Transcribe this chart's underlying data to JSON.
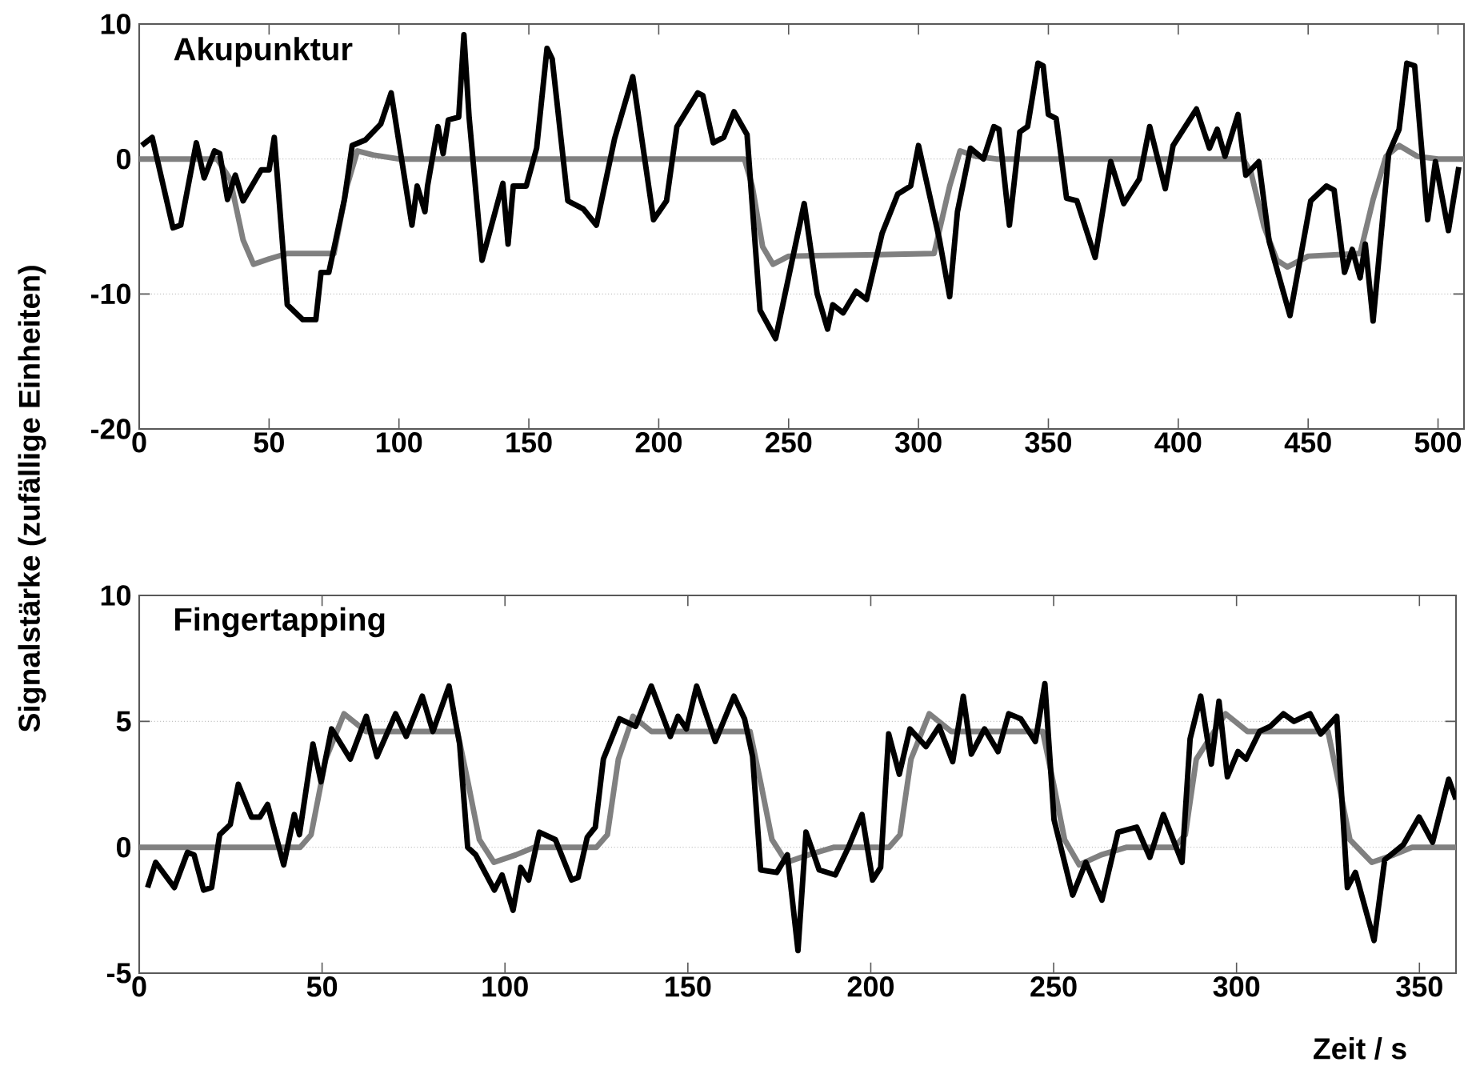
{
  "chart_data": [
    {
      "type": "line",
      "title": "Akupunktur",
      "ylabel": "Signalstärke (zufällige Einheiten)",
      "xlim": [
        0,
        510
      ],
      "ylim": [
        -20,
        10
      ],
      "xticks": [
        0,
        50,
        100,
        150,
        200,
        250,
        300,
        350,
        400,
        450,
        500
      ],
      "yticks": [
        -20,
        -10,
        0,
        10
      ],
      "grid": "y",
      "series": [
        {
          "color": "#808080",
          "x": [
            0,
            30,
            35,
            40,
            44,
            50,
            57,
            75,
            80,
            84,
            90,
            100,
            233,
            236,
            240,
            244,
            250,
            280,
            306,
            312,
            316,
            322,
            330,
            425,
            428,
            433,
            438,
            442,
            450,
            470,
            475,
            480,
            485,
            492,
            500,
            510
          ],
          "values": [
            0,
            0,
            -1.5,
            -6,
            -7.8,
            -7.4,
            -7,
            -7,
            -2,
            0.6,
            0.3,
            0,
            0,
            -2,
            -6.5,
            -7.8,
            -7.2,
            -7.1,
            -7,
            -2,
            0.6,
            0.2,
            0,
            0,
            -1,
            -5,
            -7.5,
            -8,
            -7.2,
            -7,
            -3,
            0.2,
            1,
            0.2,
            0,
            0
          ]
        },
        {
          "color": "#000000",
          "x": [
            1,
            5,
            13,
            16,
            22,
            25,
            29,
            31,
            34,
            37,
            40,
            47,
            50,
            52,
            57,
            63,
            68,
            70,
            73,
            79,
            82,
            87,
            93,
            97,
            105,
            107,
            110,
            111,
            115,
            117,
            119,
            123,
            125,
            127,
            132,
            140,
            142,
            144,
            149,
            153,
            157,
            159,
            165,
            171,
            176,
            183,
            190,
            198,
            203,
            207,
            215,
            217,
            221,
            225,
            229,
            234,
            239,
            245,
            256,
            261,
            265,
            267,
            271,
            276,
            280,
            286,
            292,
            297,
            300,
            308,
            312,
            315,
            320,
            325,
            329,
            331,
            335,
            339,
            342,
            346,
            348,
            350,
            353,
            357,
            361,
            368,
            374,
            379,
            385,
            389,
            395,
            398,
            407,
            412,
            415,
            418,
            423,
            426,
            431,
            435,
            443,
            451,
            457,
            460,
            464,
            467,
            470,
            472,
            475,
            481,
            485,
            488,
            491,
            496,
            499,
            504,
            508
          ],
          "values": [
            1,
            1.6,
            -5.1,
            -4.9,
            1.2,
            -1.4,
            0.6,
            0.4,
            -3,
            -1.2,
            -3.1,
            -0.8,
            -0.8,
            1.6,
            -10.8,
            -11.9,
            -11.9,
            -8.4,
            -8.4,
            -3,
            1,
            1.4,
            2.6,
            4.9,
            -4.9,
            -2,
            -3.9,
            -2,
            2.4,
            0.4,
            2.9,
            3.1,
            9.2,
            3.1,
            -7.5,
            -1.8,
            -6.3,
            -2,
            -2,
            0.8,
            8.2,
            7.4,
            -3.1,
            -3.7,
            -4.9,
            1.5,
            6.1,
            -4.5,
            -3.1,
            2.4,
            4.9,
            4.7,
            1.2,
            1.6,
            3.5,
            1.8,
            -11.2,
            -13.3,
            -3.3,
            -10,
            -12.6,
            -10.8,
            -11.4,
            -9.8,
            -10.4,
            -5.5,
            -2.6,
            -2,
            1,
            -5.9,
            -10.2,
            -3.9,
            0.8,
            0,
            2.4,
            2.2,
            -4.9,
            2,
            2.4,
            7.1,
            6.9,
            3.3,
            3,
            -2.9,
            -3.1,
            -7.3,
            -0.2,
            -3.3,
            -1.5,
            2.4,
            -2.2,
            1,
            3.7,
            0.8,
            2.2,
            0.2,
            3.3,
            -1.2,
            -0.2,
            -6.1,
            -11.6,
            -3.1,
            -2,
            -2.3,
            -8.4,
            -6.7,
            -8.8,
            -6.3,
            -12,
            0.4,
            2.2,
            7.1,
            6.9,
            -4.5,
            -0.2,
            -5.3,
            -0.6
          ]
        }
      ]
    },
    {
      "type": "line",
      "title": "Fingertapping",
      "xlabel": "Zeit / s",
      "xlim": [
        0,
        360
      ],
      "ylim": [
        -5,
        10
      ],
      "xticks": [
        0,
        50,
        100,
        150,
        200,
        250,
        300,
        350
      ],
      "yticks": [
        -5,
        0,
        5,
        10
      ],
      "grid": "y",
      "series": [
        {
          "color": "#808080",
          "x": [
            0,
            44,
            47,
            51,
            56,
            62,
            87,
            90,
            93,
            97,
            103,
            108,
            125,
            128,
            131,
            135,
            140,
            167,
            170,
            173,
            177,
            183,
            190,
            205,
            208,
            211,
            216,
            222,
            247,
            250,
            253,
            257,
            263,
            270,
            283,
            286,
            289,
            297,
            303,
            325,
            328,
            331,
            337,
            343,
            348,
            360
          ],
          "values": [
            0,
            0,
            0.5,
            3.5,
            5.3,
            4.6,
            4.6,
            2.5,
            0.3,
            -0.6,
            -0.3,
            0,
            0,
            0.5,
            3.5,
            5.2,
            4.6,
            4.6,
            2.5,
            0.3,
            -0.6,
            -0.3,
            0,
            0,
            0.5,
            3.5,
            5.3,
            4.6,
            4.6,
            2.5,
            0.3,
            -0.7,
            -0.3,
            0,
            0,
            0.5,
            3.5,
            5.3,
            4.6,
            4.6,
            2.5,
            0.3,
            -0.6,
            -0.3,
            0,
            0
          ]
        },
        {
          "color": "#000000",
          "x": [
            2.3,
            4.5,
            9.6,
            13.2,
            15,
            17.6,
            19.8,
            22,
            24.9,
            27.1,
            30.7,
            33,
            35.1,
            39.5,
            42.4,
            43.8,
            47.5,
            49.7,
            52.6,
            57.7,
            62.1,
            65,
            70.1,
            73,
            77.4,
            80.3,
            84.7,
            87.6,
            89.8,
            92,
            97.1,
            99.2,
            102.2,
            104.3,
            106.5,
            109.4,
            113.8,
            118.2,
            120,
            122.5,
            124.7,
            126.9,
            131.3,
            135.7,
            140,
            145.2,
            147.3,
            149.6,
            152.4,
            157.5,
            162.6,
            165.5,
            167.7,
            169.9,
            174.3,
            177.2,
            180.1,
            182.3,
            185.9,
            190.3,
            193.9,
            197.6,
            200.5,
            202.7,
            204.9,
            207.8,
            210.7,
            215.1,
            218.7,
            222.4,
            225.3,
            227.5,
            231.1,
            234.8,
            237.7,
            241,
            245,
            247.6,
            250.1,
            255.2,
            258.8,
            263.2,
            267.6,
            272.7,
            276.3,
            280,
            285.1,
            287.3,
            290.2,
            293.1,
            295.2,
            297.5,
            300.4,
            302.6,
            306.3,
            309.2,
            312.8,
            315.7,
            320.1,
            323,
            327.4,
            330.3,
            332.5,
            337.6,
            340.5,
            345.6,
            349.9,
            353.6,
            358,
            360
          ],
          "values": [
            -1.6,
            -0.6,
            -1.6,
            -0.2,
            -0.3,
            -1.7,
            -1.6,
            0.5,
            0.9,
            2.5,
            1.2,
            1.2,
            1.7,
            -0.7,
            1.3,
            0.5,
            4.1,
            2.6,
            4.7,
            3.5,
            5.2,
            3.6,
            5.3,
            4.4,
            6,
            4.6,
            6.4,
            4.1,
            0,
            -0.3,
            -1.7,
            -1.1,
            -2.5,
            -0.8,
            -1.3,
            0.6,
            0.3,
            -1.3,
            -1.2,
            0.4,
            0.8,
            3.5,
            5.1,
            4.8,
            6.4,
            4.4,
            5.2,
            4.7,
            6.4,
            4.2,
            6,
            5.1,
            3.6,
            -0.9,
            -1,
            -0.3,
            -4.1,
            0.6,
            -0.9,
            -1.1,
            0,
            1.3,
            -1.3,
            -0.8,
            4.5,
            2.9,
            4.7,
            4,
            4.8,
            3.4,
            6,
            3.7,
            4.7,
            3.8,
            5.3,
            5.1,
            4.2,
            6.5,
            1.1,
            -1.9,
            -0.6,
            -2.1,
            0.6,
            0.8,
            -0.4,
            1.3,
            -0.6,
            4.3,
            6,
            3.3,
            5.8,
            2.8,
            3.8,
            3.5,
            4.6,
            4.8,
            5.3,
            5,
            5.3,
            4.5,
            5.2,
            -1.6,
            -1,
            -3.7,
            -0.5,
            0.1,
            1.2,
            0.2,
            2.7,
            1.9
          ]
        }
      ]
    }
  ]
}
